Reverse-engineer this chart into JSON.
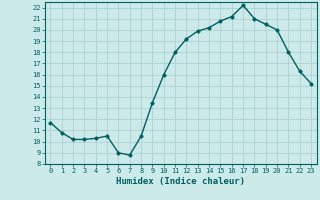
{
  "title": "",
  "xlabel": "Humidex (Indice chaleur)",
  "ylabel": "",
  "x_values": [
    0,
    1,
    2,
    3,
    4,
    5,
    6,
    7,
    8,
    9,
    10,
    11,
    12,
    13,
    14,
    15,
    16,
    17,
    18,
    19,
    20,
    21,
    22,
    23
  ],
  "y_values": [
    11.7,
    10.8,
    10.2,
    10.2,
    10.3,
    10.5,
    9.0,
    8.8,
    10.5,
    13.5,
    16.0,
    18.0,
    19.2,
    19.9,
    20.2,
    20.8,
    21.2,
    22.2,
    21.0,
    20.5,
    20.0,
    18.0,
    16.3,
    15.2
  ],
  "ylim": [
    8,
    22.5
  ],
  "xlim": [
    -0.5,
    23.5
  ],
  "yticks": [
    8,
    9,
    10,
    11,
    12,
    13,
    14,
    15,
    16,
    17,
    18,
    19,
    20,
    21,
    22
  ],
  "xticks": [
    0,
    1,
    2,
    3,
    4,
    5,
    6,
    7,
    8,
    9,
    10,
    11,
    12,
    13,
    14,
    15,
    16,
    17,
    18,
    19,
    20,
    21,
    22,
    23
  ],
  "line_color": "#006060",
  "marker_color": "#006060",
  "bg_color": "#cceaea",
  "grid_color": "#aacccc",
  "axis_color": "#006060",
  "tick_label_color": "#006060",
  "xlabel_color": "#006060",
  "line_width": 1.0,
  "marker_size": 2.5
}
